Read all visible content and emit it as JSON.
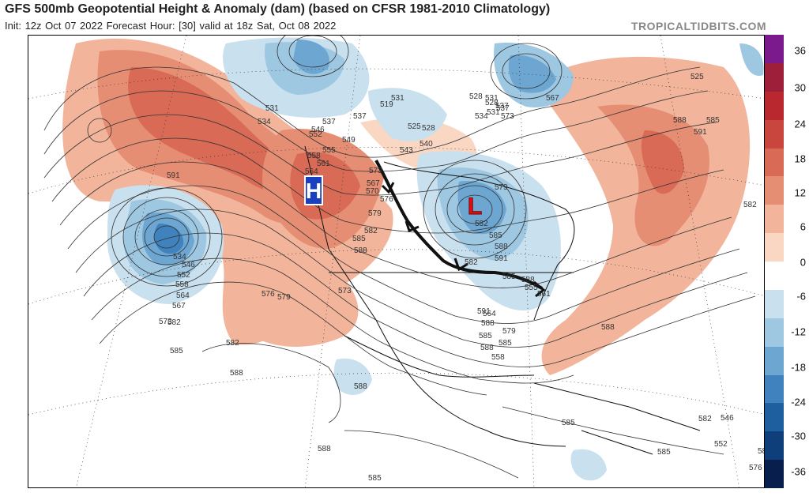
{
  "header": {
    "title": "GFS 500mb Geopotential Height & Anomaly (dam) (based on CFSR 1981-2010 Climatology)",
    "subtitle": "Init: 12z Oct 07 2022   Forecast Hour: [30]   valid at 18z Sat, Oct 08 2022",
    "brand": "TROPICALTIDBITS.COM"
  },
  "colorbar": {
    "ticks": [
      "36",
      "30",
      "24",
      "18",
      "12",
      "6",
      "0",
      "-6",
      "-12",
      "-18",
      "-24",
      "-30",
      "-36"
    ],
    "colors": [
      "#7a1a8c",
      "#9e1f3a",
      "#b8282e",
      "#c8463d",
      "#d86a56",
      "#e68e74",
      "#f2b59b",
      "#fad7c3",
      "#ffffff",
      "#c9e0ee",
      "#9ec7e2",
      "#6da6d1",
      "#3f82bd",
      "#1e5f9f",
      "#0f3f7a",
      "#081f4d"
    ]
  },
  "map": {
    "high_marker": "H",
    "low_marker": "L",
    "high_color": "#1a3fbf",
    "low_color": "#e01010",
    "contour_labels": [
      "519",
      "528",
      "531",
      "531",
      "534",
      "537",
      "537",
      "525",
      "528",
      "531",
      "534",
      "537",
      "540",
      "543",
      "546",
      "549",
      "552",
      "555",
      "558",
      "561",
      "564",
      "567",
      "570",
      "573",
      "576",
      "579",
      "582",
      "585",
      "588",
      "591",
      "534",
      "546",
      "552",
      "558",
      "564",
      "567",
      "573",
      "576",
      "579",
      "582",
      "585",
      "588",
      "591",
      "582",
      "585",
      "588",
      "555",
      "561",
      "567",
      "573",
      "537",
      "531",
      "528",
      "525",
      "585",
      "588",
      "591",
      "582",
      "588",
      "591",
      "588",
      "585",
      "588",
      "558",
      "564",
      "573",
      "579",
      "582",
      "585",
      "582",
      "588",
      "588",
      "588",
      "585",
      "585",
      "585",
      "588",
      "576",
      "582",
      "552",
      "546",
      "579",
      "585"
    ]
  }
}
